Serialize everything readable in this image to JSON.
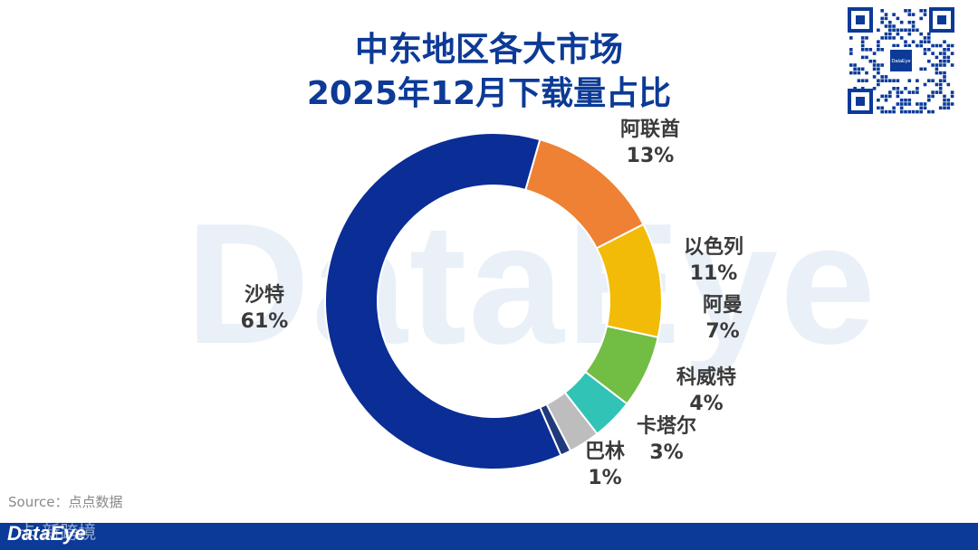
{
  "header": {
    "title_line1": "中东地区各大市场",
    "title_line2": "2025年12月下载量占比"
  },
  "watermark": "DataEye",
  "qr_logo": "DataEye",
  "source": "Source：点点数据",
  "footer": {
    "logo": "DataEye",
    "watermark": "卡 新跨境"
  },
  "colors": {
    "title": "#0c3a96",
    "footer": "#0b3a98"
  },
  "chart_data": {
    "type": "pie",
    "donut": true,
    "labels": [
      "阿联酋",
      "以色列",
      "阿曼",
      "科威特",
      "卡塔尔",
      "巴林",
      "沙特"
    ],
    "values": [
      13,
      11,
      7,
      4,
      3,
      1,
      61
    ],
    "value_labels": [
      "13%",
      "11%",
      "7%",
      "4%",
      "3%",
      "1%",
      "61%"
    ],
    "colors": [
      "#ee8133",
      "#f2bb07",
      "#72bd44",
      "#30c3b6",
      "#bdbdbd",
      "#1f3a7a",
      "#0a2d96"
    ]
  }
}
